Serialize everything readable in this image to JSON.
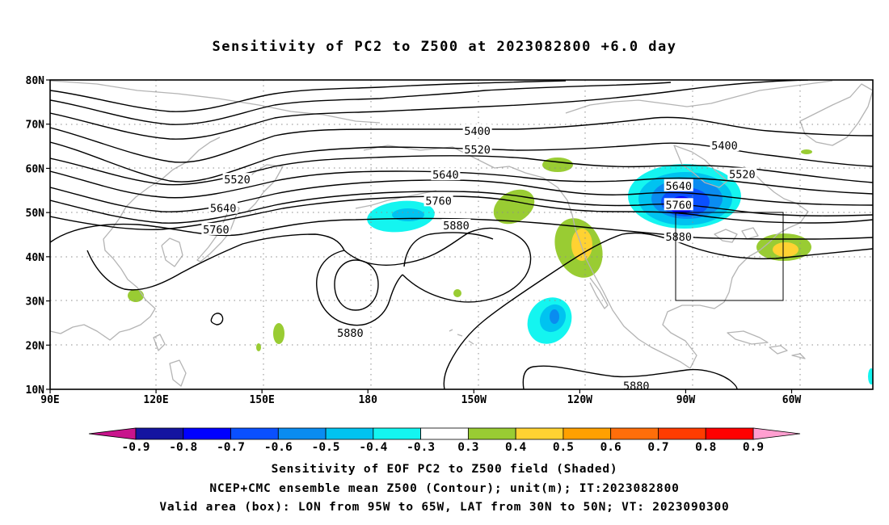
{
  "title": "Sensitivity of PC2 to Z500 at 2023082800 +6.0 day",
  "footer": {
    "line1": "Sensitivity of EOF PC2 to Z500 field (Shaded)",
    "line2": "NCEP+CMC ensemble mean Z500 (Contour); unit(m); IT:2023082800",
    "line3": "Valid area (box): LON from 95W to 65W, LAT from 30N to 50N; VT: 2023090300"
  },
  "map": {
    "lon_range": [
      90,
      323
    ],
    "lat_range": [
      10,
      80
    ],
    "x_ticks": [
      {
        "lon": 90,
        "label": "90E"
      },
      {
        "lon": 120,
        "label": "120E"
      },
      {
        "lon": 150,
        "label": "150E"
      },
      {
        "lon": 180,
        "label": "180"
      },
      {
        "lon": 210,
        "label": "150W"
      },
      {
        "lon": 240,
        "label": "120W"
      },
      {
        "lon": 270,
        "label": "90W"
      },
      {
        "lon": 300,
        "label": "60W"
      }
    ],
    "y_ticks": [
      {
        "lat": 10,
        "label": "10N"
      },
      {
        "lat": 20,
        "label": "20N"
      },
      {
        "lat": 30,
        "label": "30N"
      },
      {
        "lat": 40,
        "label": "40N"
      },
      {
        "lat": 50,
        "label": "50N"
      },
      {
        "lat": 60,
        "label": "60N"
      },
      {
        "lat": 70,
        "label": "70N"
      },
      {
        "lat": 80,
        "label": "80N"
      }
    ],
    "grid": "dotted",
    "valid_box": {
      "lon_min": 265,
      "lon_max": 295,
      "lat_min": 30,
      "lat_max": 50
    },
    "contour_labels": [
      {
        "text": "5400",
        "lon": 211,
        "lat": 68.5
      },
      {
        "text": "5520",
        "lon": 211,
        "lat": 64.3
      },
      {
        "text": "5640",
        "lon": 202,
        "lat": 58.6
      },
      {
        "text": "5760",
        "lon": 200,
        "lat": 52.7
      },
      {
        "text": "5880",
        "lon": 205,
        "lat": 47.1
      },
      {
        "text": "5520",
        "lon": 143,
        "lat": 57.5
      },
      {
        "text": "5640",
        "lon": 139,
        "lat": 51.0
      },
      {
        "text": "5760",
        "lon": 137,
        "lat": 46.2
      },
      {
        "text": "5400",
        "lon": 281,
        "lat": 65.2
      },
      {
        "text": "5520",
        "lon": 286,
        "lat": 58.7
      },
      {
        "text": "5640",
        "lon": 268,
        "lat": 56.1
      },
      {
        "text": "5760",
        "lon": 268,
        "lat": 51.8
      },
      {
        "text": "5880",
        "lon": 268,
        "lat": 44.5
      },
      {
        "text": "5880",
        "lon": 175,
        "lat": 22.8
      },
      {
        "text": "5880",
        "lon": 256,
        "lat": 10.8
      }
    ]
  },
  "colorbar": {
    "labels": [
      "-0.9",
      "-0.8",
      "-0.7",
      "-0.6",
      "-0.5",
      "-0.4",
      "-0.3",
      "0.3",
      "0.4",
      "0.5",
      "0.6",
      "0.7",
      "0.8",
      "0.9"
    ],
    "low_arrow_color": "#c8148c",
    "high_arrow_color": "#ff9fd0",
    "colors": [
      "#1414a0",
      "#0000ff",
      "#0a50ff",
      "#0a8cf0",
      "#00c3f0",
      "#14f5f0",
      "#ffffff",
      "#99cc33",
      "#ffd232",
      "#ffa000",
      "#ff6e0a",
      "#ff3c00",
      "#ff0000"
    ]
  },
  "colors": {
    "contour": "#000000",
    "coastline": "#b4b4b4",
    "grid": "#8c8c8c",
    "box": "#000000"
  }
}
